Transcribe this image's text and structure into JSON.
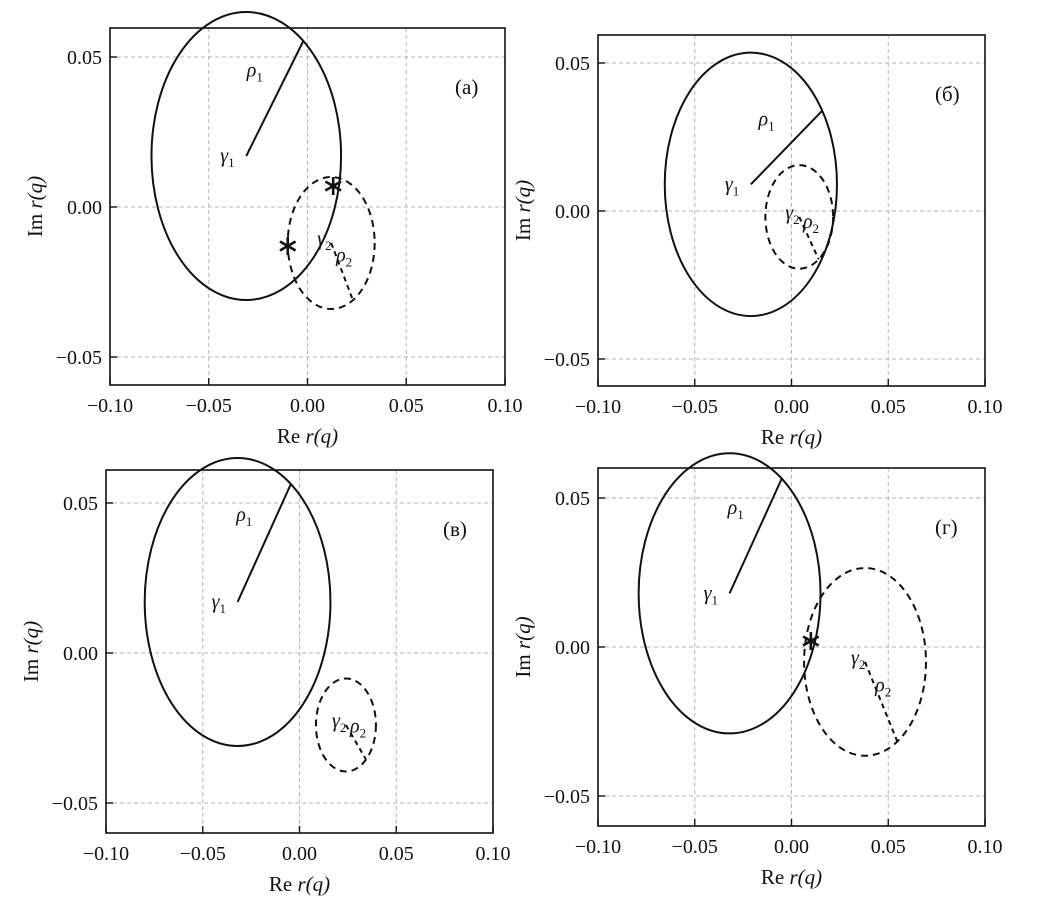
{
  "figure": {
    "xlabel_re": "Re",
    "xlabel_fn": "r(q)",
    "ylabel_im": "Im",
    "ylabel_fn": "r(q)",
    "colors": {
      "line": "#111111",
      "grid": "#b5b5b5",
      "frame": "#111111"
    }
  },
  "chart_data": [
    {
      "type": "scatter",
      "panel_label": "(а)",
      "xlim": [
        -0.1,
        0.1
      ],
      "ylim": [
        -0.06,
        0.06
      ],
      "xticks": [
        -0.1,
        -0.05,
        0.0,
        0.05,
        0.1
      ],
      "xtick_labels": [
        "−0.10",
        "−0.05",
        "0.00",
        "0.05",
        "0.10"
      ],
      "yticks": [
        0.05,
        0.0,
        -0.05
      ],
      "ytick_labels": [
        "0.05",
        "0.00",
        "−0.05"
      ],
      "grid": true,
      "circle1": {
        "center": [
          -0.031,
          0.017
        ],
        "radius": 0.048,
        "style": "solid",
        "center_label": "γ",
        "center_sub": "1",
        "radius_label": "ρ",
        "radius_sub": "1",
        "radius_angle_deg": 53
      },
      "circle2": {
        "center": [
          0.012,
          -0.012
        ],
        "radius": 0.022,
        "style": "dashed",
        "center_label": "γ",
        "center_sub": "2",
        "radius_label": "ρ",
        "radius_sub": "2",
        "radius_angle_deg": -60
      },
      "intersections": [
        [
          0.013,
          0.007
        ],
        [
          -0.01,
          -0.013
        ]
      ]
    },
    {
      "type": "scatter",
      "panel_label": "(б)",
      "xlim": [
        -0.1,
        0.1
      ],
      "ylim": [
        -0.06,
        0.06
      ],
      "xticks": [
        -0.1,
        -0.05,
        0.0,
        0.05,
        0.1
      ],
      "xtick_labels": [
        "−0.10",
        "−0.05",
        "0.00",
        "0.05",
        "0.10"
      ],
      "yticks": [
        0.05,
        0.0,
        -0.05
      ],
      "ytick_labels": [
        "0.05",
        "0.00",
        "−0.05"
      ],
      "grid": true,
      "circle1": {
        "center": [
          -0.021,
          0.009
        ],
        "radius": 0.0445,
        "style": "solid",
        "center_label": "γ",
        "center_sub": "1",
        "radius_label": "ρ",
        "radius_sub": "1",
        "radius_angle_deg": 34
      },
      "circle2": {
        "center": [
          0.004,
          -0.002
        ],
        "radius": 0.0175,
        "style": "dashed",
        "center_label": "γ",
        "center_sub": "2",
        "radius_label": "ρ",
        "radius_sub": "2",
        "radius_angle_deg": -55
      },
      "intersections": []
    },
    {
      "type": "scatter",
      "panel_label": "(в)",
      "xlim": [
        -0.1,
        0.1
      ],
      "ylim": [
        -0.06,
        0.06
      ],
      "xticks": [
        -0.1,
        -0.05,
        0.0,
        0.05,
        0.1
      ],
      "xtick_labels": [
        "−0.10",
        "−0.05",
        "0.00",
        "0.05",
        "0.10"
      ],
      "yticks": [
        0.05,
        0.0,
        -0.05
      ],
      "ytick_labels": [
        "0.05",
        "0.00",
        "−0.05"
      ],
      "grid": true,
      "circle1": {
        "center": [
          -0.032,
          0.017
        ],
        "radius": 0.048,
        "style": "solid",
        "center_label": "γ",
        "center_sub": "1",
        "radius_label": "ρ",
        "radius_sub": "1",
        "radius_angle_deg": 55
      },
      "circle2": {
        "center": [
          0.024,
          -0.024
        ],
        "radius": 0.0155,
        "style": "dashed",
        "center_label": "γ",
        "center_sub": "2",
        "radius_label": "ρ",
        "radius_sub": "2",
        "radius_angle_deg": -48
      },
      "intersections": []
    },
    {
      "type": "scatter",
      "panel_label": "(г)",
      "xlim": [
        -0.1,
        0.1
      ],
      "ylim": [
        -0.06,
        0.06
      ],
      "xticks": [
        -0.1,
        -0.05,
        0.0,
        0.05,
        0.1
      ],
      "xtick_labels": [
        "−0.10",
        "−0.05",
        "0.00",
        "0.05",
        "0.10"
      ],
      "yticks": [
        0.05,
        0.0,
        -0.05
      ],
      "ytick_labels": [
        "0.05",
        "0.00",
        "−0.05"
      ],
      "grid": true,
      "circle1": {
        "center": [
          -0.032,
          0.018
        ],
        "radius": 0.047,
        "style": "solid",
        "center_label": "γ",
        "center_sub": "1",
        "radius_label": "ρ",
        "radius_sub": "1",
        "radius_angle_deg": 55
      },
      "circle2": {
        "center": [
          0.038,
          -0.005
        ],
        "radius": 0.0315,
        "style": "dashed",
        "center_label": "γ",
        "center_sub": "2",
        "radius_label": "ρ",
        "radius_sub": "2",
        "radius_angle_deg": -58
      },
      "intersections": [
        [
          0.01,
          0.002
        ]
      ]
    }
  ]
}
